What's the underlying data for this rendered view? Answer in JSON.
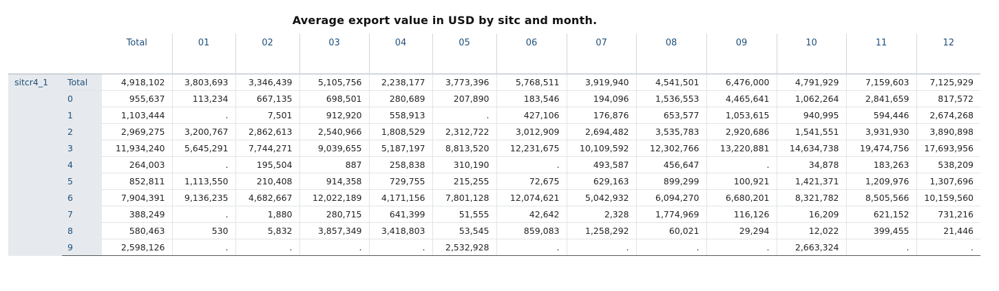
{
  "title": "Average export value in USD by sitc and month.",
  "table": {
    "row_variable": "sitcr4_1",
    "columns": [
      "Total",
      "01",
      "02",
      "03",
      "04",
      "05",
      "06",
      "07",
      "08",
      "09",
      "10",
      "11",
      "12"
    ],
    "rows": [
      {
        "label": "Total",
        "values": [
          "4,918,102",
          "3,803,693",
          "3,346,439",
          "5,105,756",
          "2,238,177",
          "3,773,396",
          "5,768,511",
          "3,919,940",
          "4,541,501",
          "6,476,000",
          "4,791,929",
          "7,159,603",
          "7,125,929"
        ]
      },
      {
        "label": "0",
        "values": [
          "955,637",
          "113,234",
          "667,135",
          "698,501",
          "280,689",
          "207,890",
          "183,546",
          "194,096",
          "1,536,553",
          "4,465,641",
          "1,062,264",
          "2,841,659",
          "817,572"
        ]
      },
      {
        "label": "1",
        "values": [
          "1,103,444",
          ".",
          "7,501",
          "912,920",
          "558,913",
          ".",
          "427,106",
          "176,876",
          "653,577",
          "1,053,615",
          "940,995",
          "594,446",
          "2,674,268"
        ]
      },
      {
        "label": "2",
        "values": [
          "2,969,275",
          "3,200,767",
          "2,862,613",
          "2,540,966",
          "1,808,529",
          "2,312,722",
          "3,012,909",
          "2,694,482",
          "3,535,783",
          "2,920,686",
          "1,541,551",
          "3,931,930",
          "3,890,898"
        ]
      },
      {
        "label": "3",
        "values": [
          "11,934,240",
          "5,645,291",
          "7,744,271",
          "9,039,655",
          "5,187,197",
          "8,813,520",
          "12,231,675",
          "10,109,592",
          "12,302,766",
          "13,220,881",
          "14,634,738",
          "19,474,756",
          "17,693,956"
        ]
      },
      {
        "label": "4",
        "values": [
          "264,003",
          ".",
          "195,504",
          "887",
          "258,838",
          "310,190",
          ".",
          "493,587",
          "456,647",
          ".",
          "34,878",
          "183,263",
          "538,209"
        ]
      },
      {
        "label": "5",
        "values": [
          "852,811",
          "1,113,550",
          "210,408",
          "914,358",
          "729,755",
          "215,255",
          "72,675",
          "629,163",
          "899,299",
          "100,921",
          "1,421,371",
          "1,209,976",
          "1,307,696"
        ]
      },
      {
        "label": "6",
        "values": [
          "7,904,391",
          "9,136,235",
          "4,682,667",
          "12,022,189",
          "4,171,156",
          "7,801,128",
          "12,074,621",
          "5,042,932",
          "6,094,270",
          "6,680,201",
          "8,321,782",
          "8,505,566",
          "10,159,560"
        ]
      },
      {
        "label": "7",
        "values": [
          "388,249",
          ".",
          "1,880",
          "280,715",
          "641,399",
          "51,555",
          "42,642",
          "2,328",
          "1,774,969",
          "116,126",
          "16,209",
          "621,152",
          "731,216"
        ]
      },
      {
        "label": "8",
        "values": [
          "580,463",
          "530",
          "5,832",
          "3,857,349",
          "3,418,803",
          "53,545",
          "859,083",
          "1,258,292",
          "60,021",
          "29,294",
          "12,022",
          "399,455",
          "21,446"
        ]
      },
      {
        "label": "9",
        "values": [
          "2,598,126",
          ".",
          ".",
          ".",
          ".",
          "2,532,928",
          ".",
          ".",
          ".",
          ".",
          "2,663,324",
          ".",
          "."
        ]
      }
    ]
  }
}
